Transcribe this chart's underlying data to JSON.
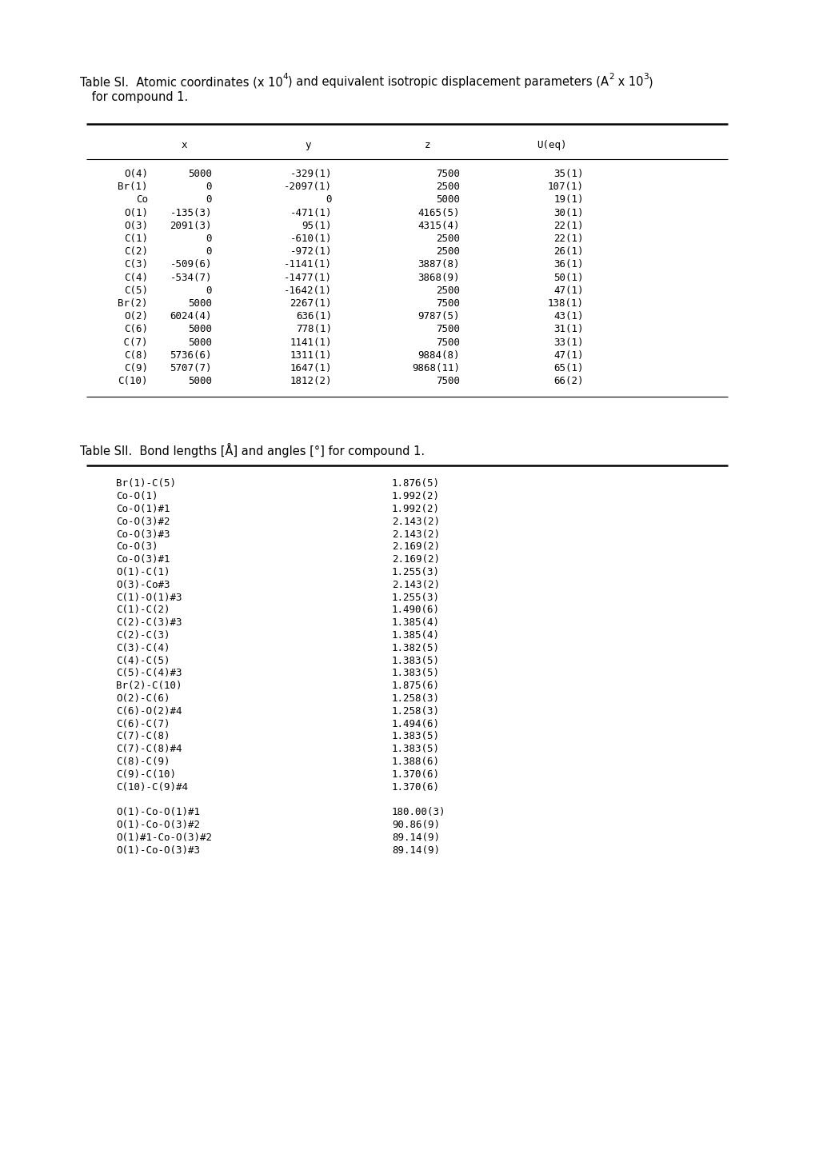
{
  "title1_seg": [
    [
      "Table SI.  Atomic coordinates (x 10",
      false
    ],
    [
      "4",
      true
    ],
    [
      ") and equivalent isotropic displacement parameters (A",
      false
    ],
    [
      "2",
      true
    ],
    [
      " x 10",
      false
    ],
    [
      "3",
      true
    ],
    [
      ")",
      false
    ]
  ],
  "title1_line2": " for compound 1.",
  "table1_headers": [
    "x",
    "y",
    "z",
    "U(eq)"
  ],
  "table1_rows": [
    [
      "O(4)",
      "5000",
      "-329(1)",
      "7500",
      "35(1)"
    ],
    [
      "Br(1)",
      "0",
      "-2097(1)",
      "2500",
      "107(1)"
    ],
    [
      "Co",
      "0",
      "0",
      "5000",
      "19(1)"
    ],
    [
      "O(1)",
      "-135(3)",
      "-471(1)",
      "4165(5)",
      "30(1)"
    ],
    [
      "O(3)",
      "2091(3)",
      "95(1)",
      "4315(4)",
      "22(1)"
    ],
    [
      "C(1)",
      "0",
      "-610(1)",
      "2500",
      "22(1)"
    ],
    [
      "C(2)",
      "0",
      "-972(1)",
      "2500",
      "26(1)"
    ],
    [
      "C(3)",
      "-509(6)",
      "-1141(1)",
      "3887(8)",
      "36(1)"
    ],
    [
      "C(4)",
      "-534(7)",
      "-1477(1)",
      "3868(9)",
      "50(1)"
    ],
    [
      "C(5)",
      "0",
      "-1642(1)",
      "2500",
      "47(1)"
    ],
    [
      "Br(2)",
      "5000",
      "2267(1)",
      "7500",
      "138(1)"
    ],
    [
      "O(2)",
      "6024(4)",
      "636(1)",
      "9787(5)",
      "43(1)"
    ],
    [
      "C(6)",
      "5000",
      "778(1)",
      "7500",
      "31(1)"
    ],
    [
      " C(7)",
      "5000",
      "1141(1)",
      "7500",
      "33(1)"
    ],
    [
      "C(8)",
      "5736(6)",
      "1311(1)",
      "9884(8)",
      "47(1)"
    ],
    [
      "C(9)",
      "5707(7)",
      "1647(1)",
      "9868(11)",
      "65(1)"
    ],
    [
      "C(10)",
      "5000",
      "1812(2)",
      "7500",
      "66(2)"
    ]
  ],
  "title2": "Table SII.  Bond lengths [Å] and angles [°] for compound 1.",
  "table2_rows": [
    [
      "Br(1)-C(5)",
      "1.876(5)"
    ],
    [
      "Co-O(1)",
      "1.992(2)"
    ],
    [
      "Co-O(1)#1",
      "1.992(2)"
    ],
    [
      "Co-O(3)#2",
      "2.143(2)"
    ],
    [
      "Co-O(3)#3",
      "2.143(2)"
    ],
    [
      "Co-O(3)",
      "2.169(2)"
    ],
    [
      "Co-O(3)#1",
      "2.169(2)"
    ],
    [
      "O(1)-C(1)",
      "1.255(3)"
    ],
    [
      "O(3)-Co#3",
      "2.143(2)"
    ],
    [
      "C(1)-O(1)#3",
      "1.255(3)"
    ],
    [
      "C(1)-C(2)",
      "1.490(6)"
    ],
    [
      "C(2)-C(3)#3",
      "1.385(4)"
    ],
    [
      "C(2)-C(3)",
      "1.385(4)"
    ],
    [
      "C(3)-C(4)",
      "1.382(5)"
    ],
    [
      "C(4)-C(5)",
      "1.383(5)"
    ],
    [
      "C(5)-C(4)#3",
      "1.383(5)"
    ],
    [
      "Br(2)-C(10)",
      "1.875(6)"
    ],
    [
      "O(2)-C(6)",
      "1.258(3)"
    ],
    [
      "C(6)-O(2)#4",
      "1.258(3)"
    ],
    [
      "C(6)-C(7)",
      "1.494(6)"
    ],
    [
      "C(7)-C(8)",
      "1.383(5)"
    ],
    [
      "C(7)-C(8)#4",
      "1.383(5)"
    ],
    [
      "C(8)-C(9)",
      "1.388(6)"
    ],
    [
      "C(9)-C(10)",
      "1.370(6)"
    ],
    [
      "C(10)-C(9)#4",
      "1.370(6)"
    ],
    [
      "",
      ""
    ],
    [
      "O(1)-Co-O(1)#1",
      "180.00(3)"
    ],
    [
      "O(1)-Co-O(3)#2",
      "90.86(9)"
    ],
    [
      "O(1)#1-Co-O(3)#2",
      "89.14(9)"
    ],
    [
      "O(1)-Co-O(3)#3",
      "89.14(9)"
    ]
  ],
  "bg_color": "#ffffff",
  "text_color": "#000000",
  "line_color": "#000000",
  "title_fontsize": 10.5,
  "header_fontsize": 9.0,
  "body_fontsize": 9.0,
  "mono_font": "DejaVu Sans Mono",
  "sans_font": "DejaVu Sans"
}
